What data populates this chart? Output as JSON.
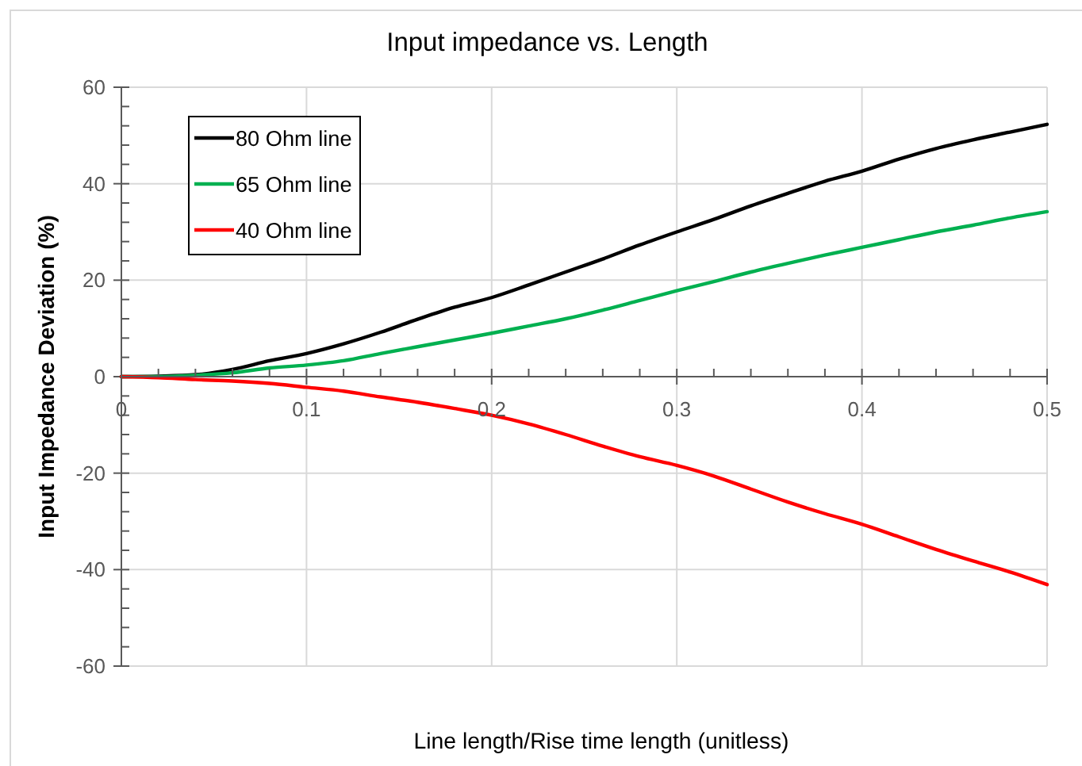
{
  "chart_data": {
    "type": "line",
    "title": "Input impedance vs. Length",
    "xlabel": "Line length/Rise time length (unitless)",
    "ylabel": "Input Impedance Deviation (%)",
    "x": [
      0,
      0.02,
      0.04,
      0.06,
      0.08,
      0.1,
      0.12,
      0.14,
      0.16,
      0.18,
      0.2,
      0.22,
      0.24,
      0.26,
      0.28,
      0.3,
      0.32,
      0.34,
      0.36,
      0.38,
      0.4,
      0.42,
      0.44,
      0.46,
      0.48,
      0.5
    ],
    "series": [
      {
        "name": "80 Ohm line",
        "color": "#000000",
        "values": [
          0,
          0.1,
          0.4,
          1.5,
          3.3,
          4.8,
          6.8,
          9.2,
          11.9,
          14.4,
          16.4,
          19,
          21.7,
          24.4,
          27.3,
          30,
          32.6,
          35.4,
          38,
          40.5,
          42.6,
          45.1,
          47.3,
          49.1,
          50.7,
          52.3
        ]
      },
      {
        "name": "65 Ohm line",
        "color": "#00b050",
        "values": [
          0,
          0,
          0.3,
          0.8,
          1.8,
          2.4,
          3.3,
          4.8,
          6.2,
          7.6,
          9,
          10.5,
          12,
          13.8,
          15.8,
          17.8,
          19.7,
          21.7,
          23.5,
          25.2,
          26.8,
          28.4,
          30,
          31.4,
          32.9,
          34.2
        ]
      },
      {
        "name": "40 Ohm line",
        "color": "#ff0000",
        "values": [
          0,
          -0.2,
          -0.6,
          -0.9,
          -1.4,
          -2.2,
          -3,
          -4.2,
          -5.3,
          -6.6,
          -8,
          -9.8,
          -12,
          -14.4,
          -16.6,
          -18.4,
          -20.6,
          -23.3,
          -26,
          -28.4,
          -30.6,
          -33.2,
          -35.8,
          -38.2,
          -40.5,
          -43.1
        ]
      }
    ],
    "xlim": [
      0,
      0.5
    ],
    "xticks": [
      {
        "value": 0,
        "label": "0"
      },
      {
        "value": 0.02,
        "label": null
      },
      {
        "value": 0.04,
        "label": null
      },
      {
        "value": 0.06,
        "label": null
      },
      {
        "value": 0.08,
        "label": null
      },
      {
        "value": 0.1,
        "label": "0.1"
      },
      {
        "value": 0.12,
        "label": null
      },
      {
        "value": 0.14,
        "label": null
      },
      {
        "value": 0.16,
        "label": null
      },
      {
        "value": 0.18,
        "label": null
      },
      {
        "value": 0.2,
        "label": "0.2"
      },
      {
        "value": 0.22,
        "label": null
      },
      {
        "value": 0.24,
        "label": null
      },
      {
        "value": 0.26,
        "label": null
      },
      {
        "value": 0.28,
        "label": null
      },
      {
        "value": 0.3,
        "label": "0.3"
      },
      {
        "value": 0.32,
        "label": null
      },
      {
        "value": 0.34,
        "label": null
      },
      {
        "value": 0.36,
        "label": null
      },
      {
        "value": 0.38,
        "label": null
      },
      {
        "value": 0.4,
        "label": "0.4"
      },
      {
        "value": 0.42,
        "label": null
      },
      {
        "value": 0.44,
        "label": null
      },
      {
        "value": 0.46,
        "label": null
      },
      {
        "value": 0.48,
        "label": null
      },
      {
        "value": 0.5,
        "label": "0.5"
      }
    ],
    "ylim": [
      -60,
      60
    ],
    "yticks": [
      {
        "value": -60,
        "label": "-60"
      },
      {
        "value": -56,
        "label": null
      },
      {
        "value": -52,
        "label": null
      },
      {
        "value": -48,
        "label": null
      },
      {
        "value": -44,
        "label": null
      },
      {
        "value": -40,
        "label": "-40"
      },
      {
        "value": -36,
        "label": null
      },
      {
        "value": -32,
        "label": null
      },
      {
        "value": -28,
        "label": null
      },
      {
        "value": -24,
        "label": null
      },
      {
        "value": -20,
        "label": "-20"
      },
      {
        "value": -16,
        "label": null
      },
      {
        "value": -12,
        "label": null
      },
      {
        "value": -8,
        "label": null
      },
      {
        "value": -4,
        "label": null
      },
      {
        "value": 0,
        "label": "0"
      },
      {
        "value": 4,
        "label": null
      },
      {
        "value": 8,
        "label": null
      },
      {
        "value": 12,
        "label": null
      },
      {
        "value": 16,
        "label": null
      },
      {
        "value": 20,
        "label": "20"
      },
      {
        "value": 24,
        "label": null
      },
      {
        "value": 28,
        "label": null
      },
      {
        "value": 32,
        "label": null
      },
      {
        "value": 36,
        "label": null
      },
      {
        "value": 40,
        "label": "40"
      },
      {
        "value": 44,
        "label": null
      },
      {
        "value": 48,
        "label": null
      },
      {
        "value": 52,
        "label": null
      },
      {
        "value": 56,
        "label": null
      },
      {
        "value": 60,
        "label": "60"
      }
    ],
    "grid": true,
    "legend": "top left",
    "line_style": "solid"
  }
}
